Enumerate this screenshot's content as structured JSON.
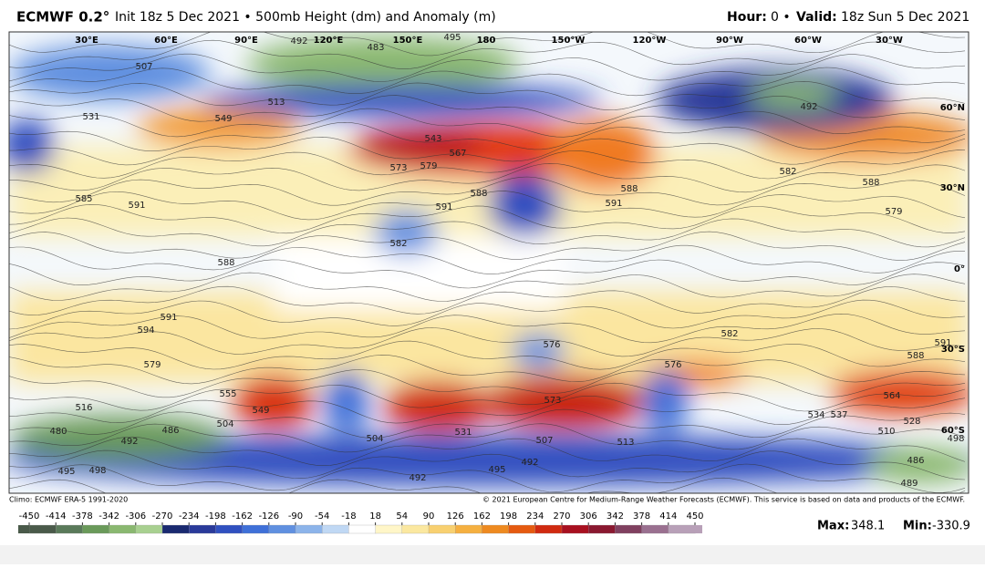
{
  "header": {
    "title_brand": "ECMWF 0.2°",
    "title_rest": "Init 18z 5 Dec 2021 • 500mb Height (dm) and Anomaly (m)",
    "hour_label": "Hour:",
    "hour_value": "0 •",
    "valid_label": "Valid:",
    "valid_value": "18z Sun 5 Dec 2021"
  },
  "map": {
    "longitude_labels": [
      "30°E",
      "60°E",
      "90°E",
      "120°E",
      "150°E",
      "180",
      "150°W",
      "120°W",
      "90°W",
      "60°W",
      "30°W"
    ],
    "latitude_labels": [
      "60°N",
      "30°N",
      "0°",
      "30°S",
      "60°S"
    ],
    "contour_labels": [
      "507",
      "513",
      "531",
      "549",
      "585",
      "591",
      "588",
      "594",
      "591",
      "579",
      "516",
      "555",
      "549",
      "504",
      "486",
      "480",
      "492",
      "495",
      "498",
      "543",
      "567",
      "573",
      "579",
      "591",
      "588",
      "582",
      "576",
      "573",
      "531",
      "504",
      "507",
      "492",
      "495",
      "492",
      "513",
      "576",
      "582",
      "564",
      "534",
      "537",
      "528",
      "498",
      "486",
      "489",
      "510",
      "588",
      "579",
      "582",
      "591",
      "588",
      "591",
      "588",
      "483",
      "492",
      "495",
      "492"
    ]
  },
  "footer": {
    "climo": "Climo: ECMWF ERA-5 1991-2020",
    "copyright": "© 2021 European Centre for Medium-Range Weather Forecasts (ECMWF). This service is based on data and products of the ECMWF.",
    "max_label": "Max:",
    "max_value": 348.1,
    "min_label": "Min:",
    "min_value": -330.9
  },
  "colorbar": {
    "ticks": [
      -450,
      -414,
      -378,
      -342,
      -306,
      -270,
      -234,
      -198,
      -162,
      -126,
      -90,
      -54,
      -18,
      18,
      54,
      90,
      126,
      162,
      198,
      234,
      270,
      306,
      342,
      378,
      414,
      450
    ],
    "colors": [
      "#4a5a4a",
      "#5a7a5a",
      "#6a9a5a",
      "#8ab870",
      "#a8d090",
      "#1a2a70",
      "#2a3a9a",
      "#3050c0",
      "#3f70d8",
      "#6090e0",
      "#8cb4ea",
      "#c0d8f4",
      "#ffffff",
      "#fff6c8",
      "#fbe8a0",
      "#f8d070",
      "#f5b040",
      "#ee8a20",
      "#e55a10",
      "#d02a10",
      "#a81020",
      "#8a1830",
      "#804060",
      "#9a7090",
      "#b8a0b8"
    ]
  }
}
